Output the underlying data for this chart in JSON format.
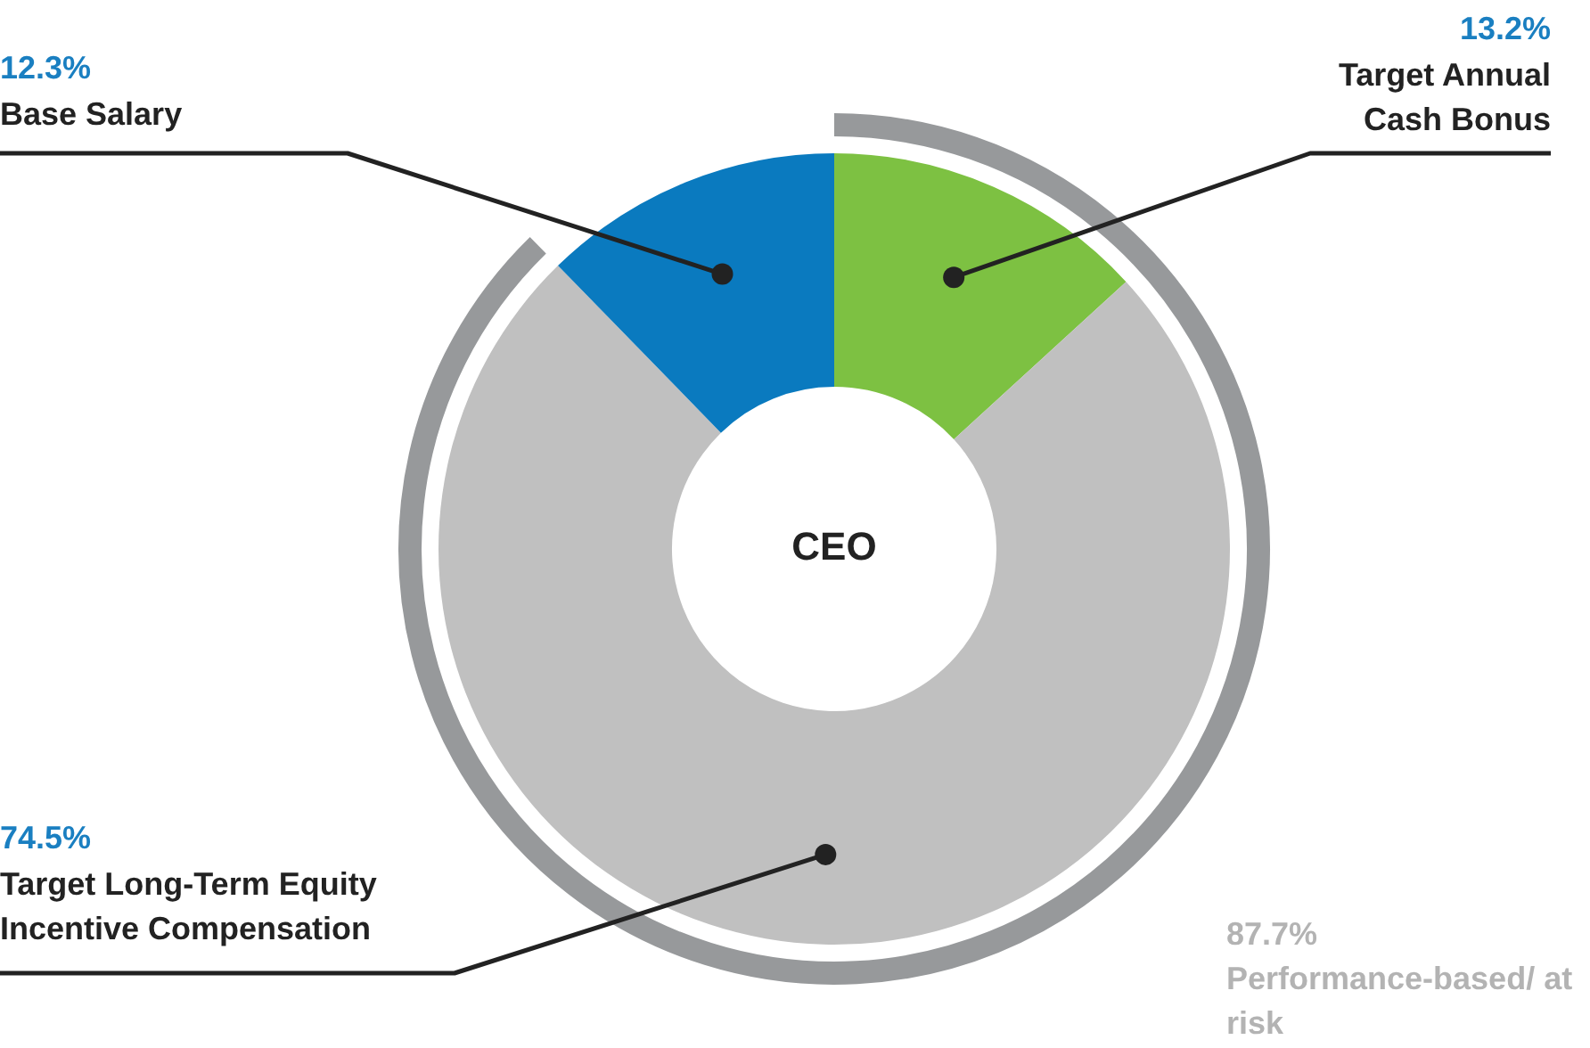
{
  "chart_data": {
    "type": "donut",
    "title": "CEO",
    "categories": [
      "Target Annual Cash Bonus",
      "Target Long-Term Equity Incentive Compensation",
      "Base Salary"
    ],
    "values": [
      13.2,
      74.5,
      12.3
    ],
    "colors": [
      "#7dc142",
      "#c0c0c0",
      "#0a7abf"
    ],
    "value_labels": [
      "13.2%",
      "74.5%",
      "12.3%"
    ],
    "annotations": [
      "87.7%",
      "Performance-based/ at risk"
    ],
    "legend": false
  }
}
